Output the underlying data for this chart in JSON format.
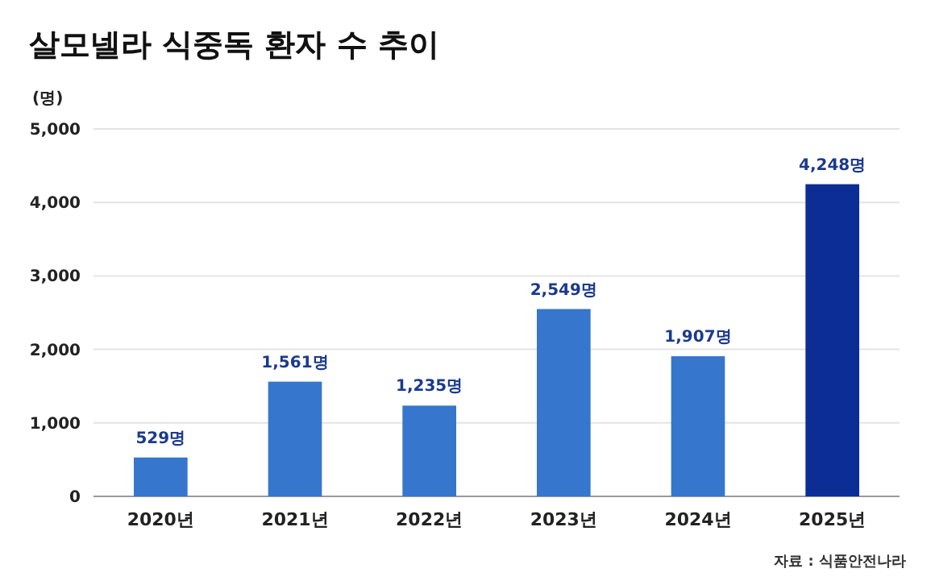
{
  "chart_data": {
    "type": "bar",
    "title": "살모넬라 식중독 환자 수 추이",
    "ylabel": "(명)",
    "categories": [
      "2020년",
      "2021년",
      "2022년",
      "2023년",
      "2024년",
      "2025년"
    ],
    "values": [
      529,
      1561,
      1235,
      2549,
      1907,
      4248
    ],
    "value_labels": [
      "529명",
      "1,561명",
      "1,235명",
      "2,549명",
      "1,907명",
      "4,248명"
    ],
    "colors": [
      "#3676cc",
      "#3676cc",
      "#3676cc",
      "#3676cc",
      "#3676cc",
      "#0c2d96"
    ],
    "ylim": [
      0,
      5000
    ],
    "yticks": [
      0,
      {
        "value": 1000,
        "label": "1,000"
      },
      {
        "value": 2000,
        "label": "2,000"
      },
      {
        "value": 3000,
        "label": "3,000"
      },
      {
        "value": 4000,
        "label": "4,000"
      },
      {
        "value": 5000,
        "label": "5,000"
      }
    ],
    "grid": "y",
    "annotations": [
      "자료 : 식품안전나라"
    ]
  }
}
